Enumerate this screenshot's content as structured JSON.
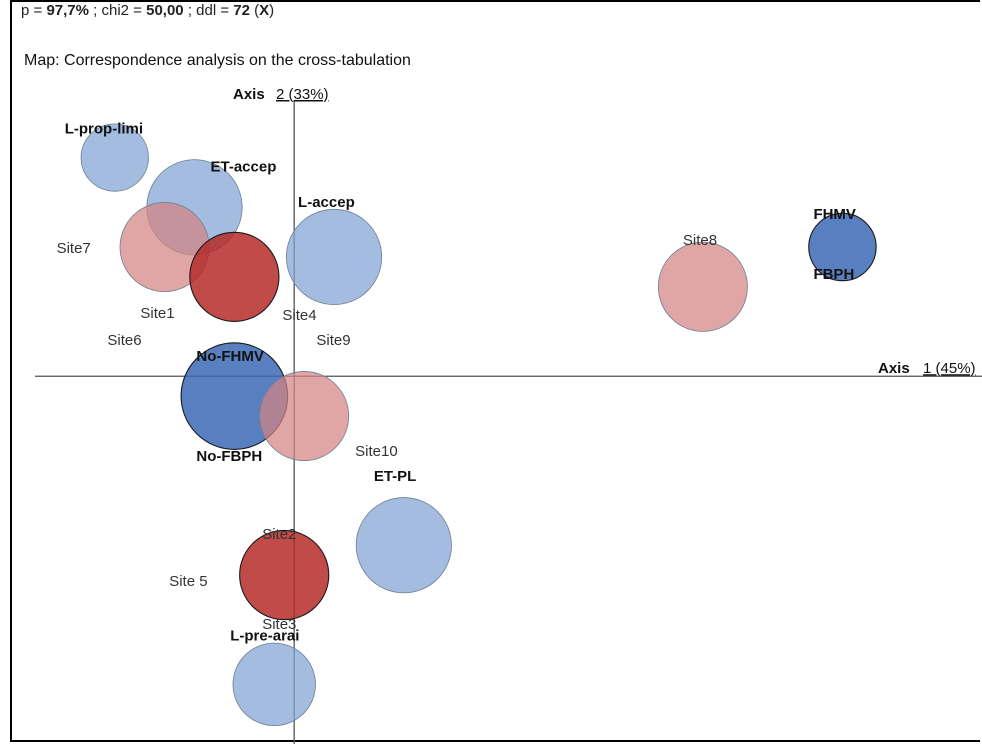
{
  "header": {
    "stats_p_label": "p = ",
    "stats_p_value": "97,7%",
    "stats_chi2_label": " ; chi2 = ",
    "stats_chi2_value": "50,00",
    "stats_ddl_label": " ; ddl = ",
    "stats_ddl_value": "72",
    "stats_x_open": " (",
    "stats_x_value": "X",
    "stats_x_close": ")",
    "title": "Map: Correspondence analysis on the cross-tabulation"
  },
  "colors": {
    "light_blue": "#7fa2d2",
    "dark_blue": "#3b69b4",
    "light_red": "#d48384",
    "dark_red": "#b52b29"
  },
  "chart_data": {
    "type": "scatter",
    "subtype": "bubble",
    "x_axis_label": "Axis 1 (45%)",
    "y_axis_label": "Axis 2 (33%)",
    "x_axis_name": "Axis",
    "x_axis_pct": "1 (45%)",
    "y_axis_name": "Axis",
    "y_axis_pct": "2 (33%)",
    "xlim": [
      -0.26,
      0.69
    ],
    "ylim": [
      -0.37,
      0.29
    ],
    "points": [
      {
        "label": "L-prop-limi",
        "x": -0.18,
        "y": 0.22,
        "size": 0.4,
        "color": "light_blue",
        "bold": true
      },
      {
        "label": "ET-accep",
        "x": -0.1,
        "y": 0.17,
        "size": 0.8,
        "color": "light_blue",
        "bold": true
      },
      {
        "label": "L-accep",
        "x": 0.04,
        "y": 0.12,
        "size": 0.8,
        "color": "light_blue",
        "bold": true
      },
      {
        "label": "FHMV",
        "x": 0.55,
        "y": 0.13,
        "size": 0.4,
        "color": "dark_blue",
        "bold": true
      },
      {
        "label": "FBPH",
        "x": 0.55,
        "y": 0.13,
        "size": 0.0,
        "color": "dark_blue",
        "bold": true
      },
      {
        "label": "Site8",
        "x": 0.41,
        "y": 0.09,
        "size": 0.7,
        "color": "light_red",
        "bold": false
      },
      {
        "label": "Site7",
        "x": -0.13,
        "y": 0.13,
        "size": 0.7,
        "color": "light_red",
        "bold": false
      },
      {
        "label": "Site1",
        "x": -0.06,
        "y": 0.1,
        "size": 0.7,
        "color": "dark_red",
        "bold": false
      },
      {
        "label": "Site4",
        "x": -0.06,
        "y": 0.1,
        "size": 0.0,
        "color": "dark_red",
        "bold": false
      },
      {
        "label": "Site6",
        "x": -0.06,
        "y": 0.1,
        "size": 0.0,
        "color": "dark_red",
        "bold": false
      },
      {
        "label": "Site9",
        "x": -0.06,
        "y": 0.1,
        "size": 0.0,
        "color": "dark_red",
        "bold": false
      },
      {
        "label": "No-FHMV",
        "x": -0.06,
        "y": -0.02,
        "size": 1.0,
        "color": "dark_blue",
        "bold": true
      },
      {
        "label": "No-FBPH",
        "x": -0.06,
        "y": -0.02,
        "size": 0.0,
        "color": "dark_blue",
        "bold": true
      },
      {
        "label": "Site10",
        "x": 0.01,
        "y": -0.04,
        "size": 0.7,
        "color": "light_red",
        "bold": false
      },
      {
        "label": "ET-PL",
        "x": 0.11,
        "y": -0.17,
        "size": 0.8,
        "color": "light_blue",
        "bold": true
      },
      {
        "label": "Site2",
        "x": -0.01,
        "y": -0.2,
        "size": 0.7,
        "color": "dark_red",
        "bold": false
      },
      {
        "label": "Site 5",
        "x": -0.01,
        "y": -0.2,
        "size": 0.0,
        "color": "dark_red",
        "bold": false
      },
      {
        "label": "Site3",
        "x": -0.01,
        "y": -0.2,
        "size": 0.0,
        "color": "dark_red",
        "bold": false
      },
      {
        "label": "L-pre-arai",
        "x": -0.02,
        "y": -0.31,
        "size": 0.6,
        "color": "light_blue",
        "bold": true
      }
    ]
  }
}
